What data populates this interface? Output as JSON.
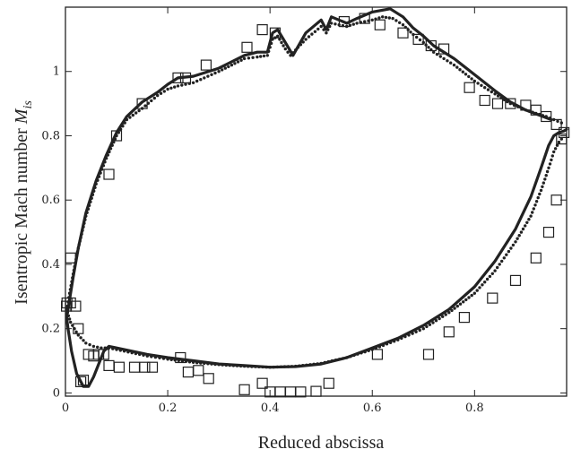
{
  "chart_data": {
    "type": "scatter",
    "xlabel": "Reduced abscissa",
    "ylabel_text": "Isentropic Mach number ",
    "ylabel_symbol": "M",
    "ylabel_subscript": "is",
    "xlim": [
      0,
      0.98
    ],
    "ylim": [
      -0.01,
      1.2
    ],
    "x_ticks": [
      0,
      0.2,
      0.4,
      0.6,
      0.8
    ],
    "x_tick_labels": [
      "0",
      "0.2",
      "0.4",
      "0.6",
      "0.8"
    ],
    "y_ticks": [
      0,
      0.2,
      0.4,
      0.6,
      0.8,
      1
    ],
    "y_tick_labels": [
      "0",
      "0.2",
      "0.4",
      "0.6",
      "0.8",
      "1"
    ],
    "grid": false,
    "legend": "none",
    "colors": {
      "ink": "#222222"
    },
    "series": [
      {
        "style": "solid-line",
        "x": [
          0.95,
          0.9,
          0.87,
          0.84,
          0.8,
          0.76,
          0.72,
          0.7,
          0.68,
          0.66,
          0.635,
          0.6,
          0.57,
          0.55,
          0.52,
          0.51,
          0.5,
          0.47,
          0.445,
          0.43,
          0.415,
          0.405,
          0.395,
          0.375,
          0.35,
          0.3,
          0.25,
          0.22,
          0.2,
          0.18,
          0.15,
          0.12,
          0.1,
          0.08,
          0.06,
          0.04,
          0.025,
          0.015,
          0.008,
          0.004,
          0.002,
          0.005,
          0.012,
          0.022,
          0.035,
          0.045,
          0.055,
          0.065,
          0.075,
          0.085,
          0.1,
          0.13,
          0.16,
          0.2,
          0.25,
          0.3,
          0.35,
          0.4,
          0.45,
          0.5,
          0.55,
          0.6,
          0.65,
          0.7,
          0.75,
          0.8,
          0.84,
          0.88,
          0.91,
          0.93,
          0.945,
          0.955,
          0.965,
          0.975,
          0.98
        ],
        "y": [
          0.85,
          0.88,
          0.905,
          0.94,
          0.99,
          1.04,
          1.08,
          1.11,
          1.135,
          1.17,
          1.195,
          1.185,
          1.165,
          1.15,
          1.17,
          1.13,
          1.16,
          1.12,
          1.05,
          1.09,
          1.13,
          1.12,
          1.06,
          1.06,
          1.05,
          1.01,
          0.985,
          0.98,
          0.96,
          0.935,
          0.905,
          0.86,
          0.81,
          0.74,
          0.66,
          0.56,
          0.45,
          0.36,
          0.29,
          0.25,
          0.24,
          0.2,
          0.13,
          0.06,
          0.02,
          0.02,
          0.05,
          0.09,
          0.13,
          0.145,
          0.14,
          0.13,
          0.12,
          0.11,
          0.1,
          0.09,
          0.085,
          0.08,
          0.082,
          0.09,
          0.11,
          0.14,
          0.17,
          0.21,
          0.26,
          0.33,
          0.41,
          0.51,
          0.61,
          0.7,
          0.77,
          0.8,
          0.81,
          0.815,
          0.82
        ]
      },
      {
        "style": "dotted-line",
        "x": [
          0.97,
          0.94,
          0.9,
          0.87,
          0.84,
          0.8,
          0.76,
          0.72,
          0.7,
          0.68,
          0.66,
          0.64,
          0.62,
          0.6,
          0.57,
          0.55,
          0.52,
          0.51,
          0.5,
          0.47,
          0.44,
          0.43,
          0.415,
          0.405,
          0.395,
          0.375,
          0.35,
          0.3,
          0.25,
          0.22,
          0.2,
          0.18,
          0.15,
          0.12,
          0.1,
          0.08,
          0.06,
          0.04,
          0.025,
          0.015,
          0.008,
          0.004,
          0.002,
          0.01,
          0.025,
          0.04,
          0.055,
          0.07,
          0.085,
          0.1,
          0.13,
          0.16,
          0.2,
          0.25,
          0.3,
          0.35,
          0.4,
          0.45,
          0.5,
          0.55,
          0.6,
          0.65,
          0.7,
          0.75,
          0.8,
          0.84,
          0.88,
          0.91,
          0.93,
          0.945,
          0.955,
          0.965,
          0.975
        ],
        "y": [
          0.84,
          0.86,
          0.88,
          0.9,
          0.93,
          0.97,
          1.02,
          1.06,
          1.09,
          1.115,
          1.145,
          1.165,
          1.17,
          1.16,
          1.15,
          1.14,
          1.15,
          1.12,
          1.14,
          1.1,
          1.05,
          1.07,
          1.11,
          1.1,
          1.05,
          1.045,
          1.04,
          1.0,
          0.965,
          0.955,
          0.945,
          0.925,
          0.885,
          0.85,
          0.8,
          0.73,
          0.65,
          0.55,
          0.45,
          0.37,
          0.31,
          0.27,
          0.26,
          0.22,
          0.18,
          0.155,
          0.145,
          0.14,
          0.14,
          0.135,
          0.125,
          0.115,
          0.105,
          0.095,
          0.088,
          0.083,
          0.08,
          0.083,
          0.092,
          0.11,
          0.135,
          0.165,
          0.2,
          0.25,
          0.31,
          0.38,
          0.47,
          0.55,
          0.63,
          0.7,
          0.75,
          0.78,
          0.8
        ]
      },
      {
        "style": "open-squares",
        "x": [
          0.003,
          0.01,
          0.03,
          0.055,
          0.075,
          0.085,
          0.1,
          0.15,
          0.22,
          0.235,
          0.275,
          0.355,
          0.385,
          0.41,
          0.545,
          0.585,
          0.615,
          0.66,
          0.69,
          0.715,
          0.74,
          0.79,
          0.82,
          0.845,
          0.87,
          0.9,
          0.92,
          0.94,
          0.96,
          0.975,
          0.97,
          0.96,
          0.945,
          0.92,
          0.88,
          0.835,
          0.78,
          0.75,
          0.71,
          0.61,
          0.515,
          0.49,
          0.46,
          0.44,
          0.42,
          0.4,
          0.385,
          0.35,
          0.28,
          0.26,
          0.24,
          0.225,
          0.17,
          0.155,
          0.135,
          0.105,
          0.085,
          0.065,
          0.045,
          0.035,
          0.025,
          0.02,
          0.01,
          0.002
        ],
        "y": [
          0.28,
          0.42,
          0.035,
          0.115,
          0.12,
          0.68,
          0.8,
          0.9,
          0.98,
          0.98,
          1.02,
          1.075,
          1.13,
          1.12,
          1.155,
          1.165,
          1.145,
          1.12,
          1.1,
          1.08,
          1.07,
          0.95,
          0.91,
          0.9,
          0.9,
          0.895,
          0.88,
          0.86,
          0.835,
          0.81,
          0.79,
          0.6,
          0.5,
          0.42,
          0.35,
          0.295,
          0.235,
          0.19,
          0.12,
          0.12,
          0.03,
          0.005,
          0.003,
          0.003,
          0.003,
          0.003,
          0.03,
          0.01,
          0.045,
          0.07,
          0.065,
          0.11,
          0.08,
          0.08,
          0.08,
          0.08,
          0.085,
          0.12,
          0.12,
          0.04,
          0.2,
          0.27,
          0.28,
          0.27
        ]
      }
    ]
  }
}
